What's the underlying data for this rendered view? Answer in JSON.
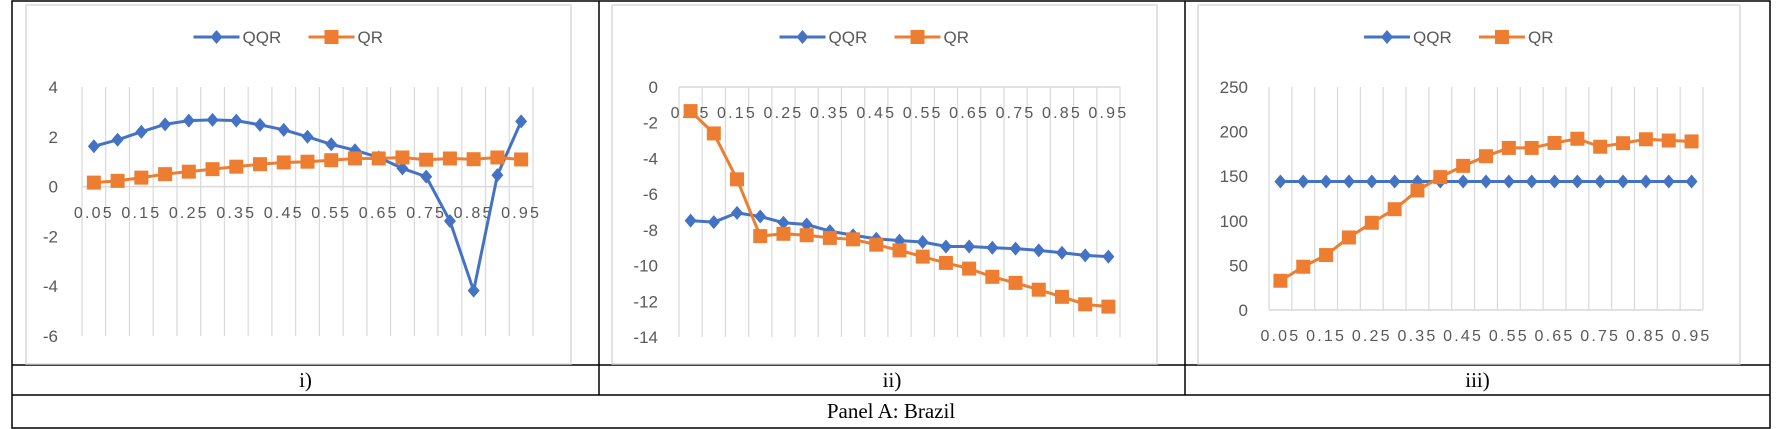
{
  "panel_title": "Panel A: Brazil",
  "colors": {
    "QQR": "#4472C4",
    "QR": "#ED7D31",
    "grid": "#D9D9D9",
    "tick": "#595959"
  },
  "chart_data": [
    {
      "type": "line",
      "caption": "i)",
      "categories": [
        "0.05",
        "0.1",
        "0.15",
        "0.2",
        "0.25",
        "0.3",
        "0.35",
        "0.4",
        "0.45",
        "0.5",
        "0.55",
        "0.6",
        "0.65",
        "0.7",
        "0.75",
        "0.8",
        "0.85",
        "0.9",
        "0.95"
      ],
      "x_tick_labels": [
        "0.05",
        "0.15",
        "0.25",
        "0.35",
        "0.45",
        "0.55",
        "0.65",
        "0.75",
        "0.85",
        "0.95"
      ],
      "ylim": [
        -6,
        4
      ],
      "yticks": [
        "4",
        "2",
        "0",
        "-2",
        "-4",
        "-6"
      ],
      "legend": [
        "QQR",
        "QR"
      ],
      "legend_position": "top-center",
      "series": [
        {
          "name": "QQR",
          "marker": "diamond",
          "values": [
            1.62,
            1.88,
            2.2,
            2.5,
            2.65,
            2.68,
            2.65,
            2.48,
            2.28,
            2.0,
            1.7,
            1.46,
            1.17,
            0.73,
            0.4,
            -1.38,
            -4.18,
            0.46,
            2.62
          ]
        },
        {
          "name": "QR",
          "marker": "square",
          "values": [
            0.16,
            0.23,
            0.36,
            0.5,
            0.6,
            0.7,
            0.8,
            0.9,
            0.97,
            1.0,
            1.06,
            1.13,
            1.13,
            1.17,
            1.08,
            1.13,
            1.1,
            1.17,
            1.09
          ]
        }
      ]
    },
    {
      "type": "line",
      "caption": "ii)",
      "categories": [
        "0.05",
        "0.1",
        "0.15",
        "0.2",
        "0.25",
        "0.3",
        "0.35",
        "0.4",
        "0.45",
        "0.5",
        "0.55",
        "0.6",
        "0.65",
        "0.7",
        "0.75",
        "0.8",
        "0.85",
        "0.9",
        "0.95"
      ],
      "x_tick_labels": [
        "0.05",
        "0.15",
        "0.25",
        "0.35",
        "0.45",
        "0.55",
        "0.65",
        "0.75",
        "0.85",
        "0.95"
      ],
      "ylim": [
        -14,
        0
      ],
      "yticks": [
        "0",
        "-2",
        "-4",
        "-6",
        "-8",
        "-10",
        "-12",
        "-14"
      ],
      "legend": [
        "QQR",
        "QR"
      ],
      "legend_position": "top-center",
      "series": [
        {
          "name": "QQR",
          "marker": "diamond",
          "values": [
            -7.48,
            -7.57,
            -7.05,
            -7.25,
            -7.6,
            -7.7,
            -8.07,
            -8.3,
            -8.5,
            -8.6,
            -8.68,
            -8.93,
            -8.93,
            -9.0,
            -9.05,
            -9.15,
            -9.28,
            -9.43,
            -9.5
          ]
        },
        {
          "name": "QR",
          "marker": "square",
          "values": [
            -1.35,
            -2.6,
            -5.17,
            -8.35,
            -8.22,
            -8.3,
            -8.45,
            -8.53,
            -8.83,
            -9.15,
            -9.5,
            -9.85,
            -10.17,
            -10.63,
            -10.97,
            -11.35,
            -11.75,
            -12.17,
            -12.3
          ]
        }
      ]
    },
    {
      "type": "line",
      "caption": "iii)",
      "categories": [
        "0.05",
        "0.1",
        "0.15",
        "0.2",
        "0.25",
        "0.3",
        "0.35",
        "0.4",
        "0.45",
        "0.5",
        "0.55",
        "0.6",
        "0.65",
        "0.7",
        "0.75",
        "0.8",
        "0.85",
        "0.9",
        "0.95"
      ],
      "x_tick_labels": [
        "0.05",
        "0.15",
        "0.25",
        "0.35",
        "0.45",
        "0.55",
        "0.65",
        "0.75",
        "0.85",
        "0.95"
      ],
      "ylim": [
        0,
        250
      ],
      "yticks": [
        "250",
        "200",
        "150",
        "100",
        "50",
        "0"
      ],
      "legend": [
        "QQR",
        "QR"
      ],
      "legend_position": "top-center",
      "series": [
        {
          "name": "QQR",
          "marker": "diamond",
          "values": [
            144,
            144,
            144,
            144,
            144,
            144,
            144,
            144,
            144,
            144,
            144,
            144,
            144,
            144,
            144,
            144,
            144,
            144,
            144
          ]
        },
        {
          "name": "QR",
          "marker": "square",
          "values": [
            32.8,
            48.5,
            61.6,
            81.3,
            97.8,
            113,
            134,
            149,
            161.6,
            172.4,
            181.7,
            181.7,
            187.3,
            192,
            183,
            187,
            191.4,
            190,
            189
          ]
        }
      ]
    }
  ]
}
